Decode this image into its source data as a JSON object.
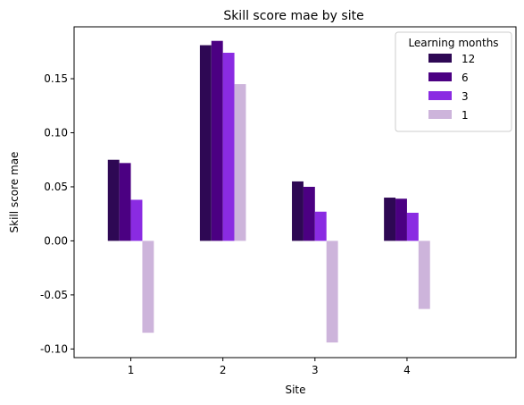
{
  "chart_data": {
    "type": "bar",
    "title": "Skill score mae by site",
    "xlabel": "Site",
    "ylabel": "Skill score mae",
    "categories": [
      "1",
      "2",
      "3",
      "4"
    ],
    "ylim": [
      -0.108,
      0.198
    ],
    "yticks": [
      "-0.10",
      "-0.05",
      "0.00",
      "0.05",
      "0.10",
      "0.15"
    ],
    "ytick_values": [
      -0.1,
      -0.05,
      0.0,
      0.05,
      0.1,
      0.15
    ],
    "legend": {
      "title": "Learning months",
      "placement": "top-right"
    },
    "series": [
      {
        "name": "12",
        "color": "#2e0854",
        "values": [
          0.075,
          0.181,
          0.055,
          0.04
        ]
      },
      {
        "name": "6",
        "color": "#4b0082",
        "values": [
          0.072,
          0.185,
          0.05,
          0.039
        ]
      },
      {
        "name": "3",
        "color": "#8a2be2",
        "values": [
          0.038,
          0.174,
          0.027,
          0.026
        ]
      },
      {
        "name": "1",
        "color": "#cdb4db",
        "values": [
          -0.085,
          0.145,
          -0.094,
          -0.063
        ]
      }
    ]
  }
}
